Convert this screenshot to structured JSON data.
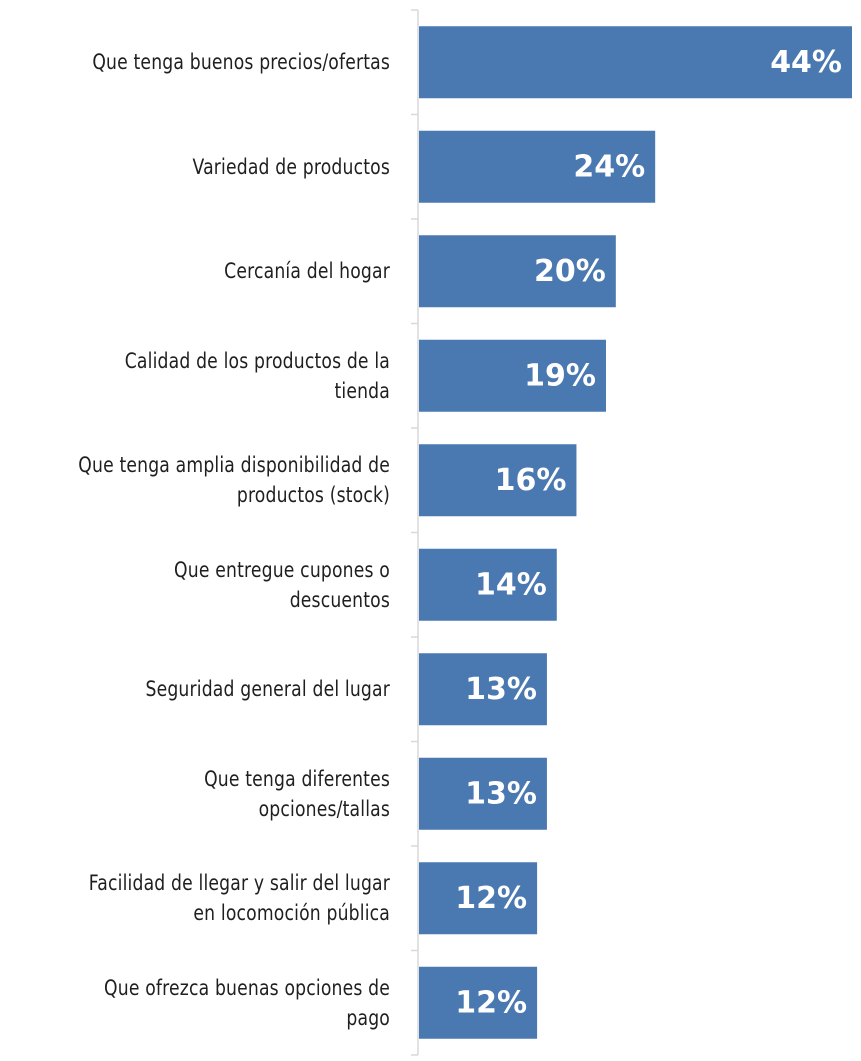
{
  "chart_data": {
    "type": "bar",
    "orientation": "horizontal",
    "categories": [
      "Que tenga buenos precios/ofertas",
      "Variedad de productos",
      "Cercanía del hogar",
      "Calidad de los productos de la tienda",
      "Que tenga amplia disponibilidad de productos (stock)",
      "Que entregue cupones o descuentos",
      "Seguridad general del lugar",
      "Que tenga diferentes opciones/tallas",
      "Facilidad de llegar y salir del lugar en locomoción pública",
      "Que ofrezca buenas opciones de pago"
    ],
    "category_lines": [
      [
        "Que tenga buenos precios/ofertas"
      ],
      [
        "Variedad de productos"
      ],
      [
        "Cercanía del hogar"
      ],
      [
        "Calidad de los productos de la",
        "tienda"
      ],
      [
        "Que tenga amplia disponibilidad de",
        "productos (stock)"
      ],
      [
        "Que entregue cupones o",
        "descuentos"
      ],
      [
        "Seguridad general del lugar"
      ],
      [
        "Que tenga diferentes",
        "opciones/tallas"
      ],
      [
        "Facilidad de llegar y salir del lugar",
        "en locomoción pública"
      ],
      [
        "Que ofrezca buenas opciones de",
        "pago"
      ]
    ],
    "values": [
      44,
      24,
      20,
      19,
      16,
      14,
      13,
      13,
      12,
      12
    ],
    "value_labels": [
      "44%",
      "24%",
      "20%",
      "19%",
      "16%",
      "14%",
      "13%",
      "13%",
      "12%",
      "12%"
    ],
    "xlim": [
      0,
      44
    ],
    "bar_color": "#4a78b0",
    "axis_color": "#d9d9d9",
    "grid": false,
    "legend": "none"
  }
}
